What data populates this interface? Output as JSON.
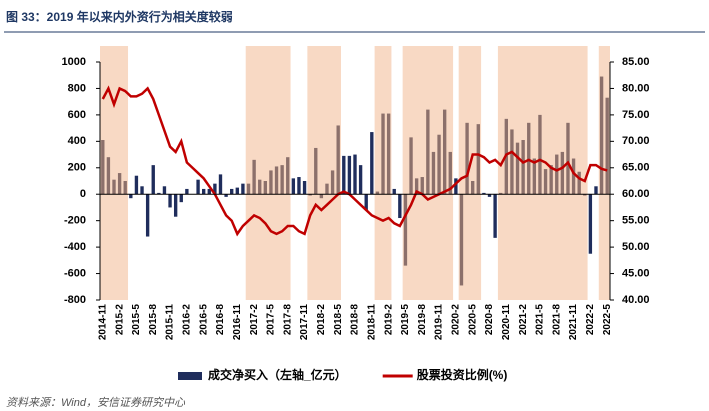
{
  "chart_data": {
    "type": "bar_line",
    "title": "图 33：2019 年以来内外资行为相关度较弱",
    "source": "资料来源：Wind，安信证券研究中心",
    "categories": [
      "2014-11",
      null,
      null,
      "2015-2",
      null,
      null,
      "2015-5",
      null,
      null,
      "2015-8",
      null,
      null,
      "2015-11",
      null,
      null,
      "2016-2",
      null,
      null,
      "2016-5",
      null,
      null,
      "2016-8",
      null,
      null,
      "2016-11",
      null,
      null,
      "2017-2",
      null,
      null,
      "2017-5",
      null,
      null,
      "2017-8",
      null,
      null,
      "2017-11",
      null,
      null,
      "2018-2",
      null,
      null,
      "2018-5",
      null,
      null,
      "2018-8",
      null,
      null,
      "2018-11",
      null,
      null,
      "2019-2",
      null,
      null,
      "2019-5",
      null,
      null,
      "2019-8",
      null,
      null,
      "2019-11",
      null,
      null,
      "2020-2",
      null,
      null,
      "2020-5",
      null,
      null,
      "2020-8",
      null,
      null,
      "2020-11",
      null,
      null,
      "2021-2",
      null,
      null,
      "2021-5",
      null,
      null,
      "2021-8",
      null,
      null,
      "2021-11",
      null,
      null,
      "2022-2",
      null,
      null,
      "2022-5"
    ],
    "series": [
      {
        "name": "成交净买入（左轴_亿元）",
        "kind": "bar",
        "color": "#1f2d5c",
        "shaded_color": "#8c706b",
        "values": [
          410,
          280,
          110,
          160,
          100,
          -30,
          140,
          60,
          -320,
          220,
          10,
          60,
          -100,
          -170,
          -60,
          40,
          0,
          110,
          40,
          40,
          80,
          150,
          -20,
          40,
          50,
          80,
          80,
          260,
          110,
          100,
          180,
          210,
          220,
          280,
          120,
          130,
          100,
          -10,
          350,
          -30,
          80,
          180,
          520,
          290,
          290,
          300,
          220,
          -120,
          470,
          20,
          610,
          610,
          40,
          -180,
          -540,
          430,
          120,
          130,
          640,
          320,
          450,
          640,
          320,
          120,
          -690,
          540,
          100,
          530,
          10,
          -20,
          -330,
          10,
          570,
          490,
          390,
          410,
          540,
          270,
          600,
          190,
          220,
          300,
          320,
          540,
          270,
          170,
          -10,
          -450,
          60,
          890,
          730
        ]
      },
      {
        "name": "股票投资比例(%)",
        "kind": "line",
        "axis": "y2",
        "color": "#c00000",
        "values": [
          78,
          80,
          77,
          80,
          79.5,
          78.5,
          78.5,
          79,
          80,
          78,
          75,
          72,
          69,
          68,
          70,
          66,
          65,
          64,
          63,
          61.5,
          60,
          58,
          56,
          55,
          52.5,
          54,
          55,
          56,
          55.5,
          54.5,
          53,
          52.5,
          53,
          54,
          54,
          53,
          52.5,
          56,
          58,
          57,
          58,
          59,
          60,
          60.5,
          60,
          59,
          58,
          57,
          56,
          55.5,
          55,
          55.5,
          54.5,
          54,
          56,
          58,
          60.5,
          60,
          59,
          59.5,
          60,
          60.5,
          61,
          62,
          63,
          63.5,
          67.5,
          67.5,
          67,
          66,
          66.5,
          65.5,
          67.5,
          68,
          67,
          66,
          66.5,
          66,
          66.5,
          66,
          65,
          64.5,
          65,
          66,
          64,
          63,
          62.5,
          65.5,
          65.5,
          64.8,
          64.5
        ]
      }
    ],
    "shaded_ranges": [
      [
        0,
        4
      ],
      [
        26,
        33
      ],
      [
        37,
        42
      ],
      [
        49,
        51
      ],
      [
        54,
        62
      ],
      [
        64,
        67
      ],
      [
        71,
        86
      ],
      [
        89,
        90
      ]
    ],
    "shade_color": "#f8d9c4",
    "ylim": [
      -800,
      1000
    ],
    "yticks": [
      -800,
      -600,
      -400,
      -200,
      0,
      200,
      400,
      600,
      800,
      1000
    ],
    "y2lim": [
      40,
      85
    ],
    "y2ticks": [
      {
        "value": 40,
        "label": "40.00"
      },
      {
        "value": 45,
        "label": "45.00"
      },
      {
        "value": 50,
        "label": "50.00"
      },
      {
        "value": 55,
        "label": "55.00"
      },
      {
        "value": 60,
        "label": "60.00"
      },
      {
        "value": 65,
        "label": "65.00"
      },
      {
        "value": 70,
        "label": "70.00"
      },
      {
        "value": 75,
        "label": "75.00"
      },
      {
        "value": 80,
        "label": "80.00"
      },
      {
        "value": 85,
        "label": "85.00"
      }
    ]
  }
}
